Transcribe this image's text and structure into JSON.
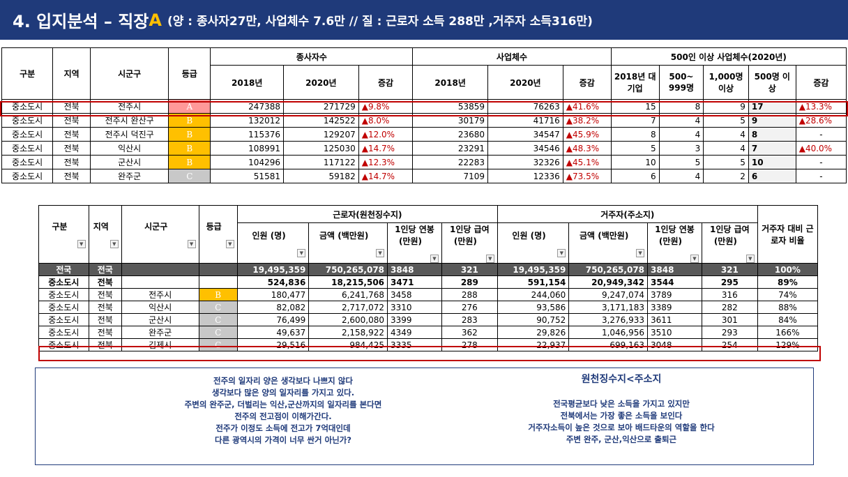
{
  "title": {
    "main": "4. 입지분석 – 직장",
    "accent": "A",
    "sub": "(양 : 종사자27만, 사업체수 7.6만 // 질 : 근로자 소득 288만 ,거주자 소득316만)"
  },
  "table1": {
    "headers": {
      "gubun": "구분",
      "region": "지역",
      "sigungu": "시군구",
      "grade": "등급",
      "workers": "종사자수",
      "biz": "사업체수",
      "big": "500인 이상 사업체수(2020년)",
      "y2018": "2018년",
      "y2020": "2020년",
      "change": "증감",
      "big2018": "2018년 대기업",
      "b500": "500~ 999명",
      "b1000": "1,000명 이상",
      "b500up": "500명 이상",
      "bchange": "증감"
    },
    "rows": [
      {
        "gubun": "중소도시",
        "region": "전북",
        "sigungu": "전주시",
        "grade": "A",
        "w18": "247388",
        "w20": "271729",
        "wc": "▲9.8%",
        "b18": "53859",
        "b20": "76263",
        "bc": "▲41.6%",
        "g18": "15",
        "g500": "8",
        "g1000": "9",
        "gtot": "17",
        "gc": "▲13.3%"
      },
      {
        "gubun": "중소도시",
        "region": "전북",
        "sigungu": "전주시 완산구",
        "grade": "B",
        "w18": "132012",
        "w20": "142522",
        "wc": "▲8.0%",
        "b18": "30179",
        "b20": "41716",
        "bc": "▲38.2%",
        "g18": "7",
        "g500": "4",
        "g1000": "5",
        "gtot": "9",
        "gc": "▲28.6%"
      },
      {
        "gubun": "중소도시",
        "region": "전북",
        "sigungu": "전주시 덕진구",
        "grade": "B",
        "w18": "115376",
        "w20": "129207",
        "wc": "▲12.0%",
        "b18": "23680",
        "b20": "34547",
        "bc": "▲45.9%",
        "g18": "8",
        "g500": "4",
        "g1000": "4",
        "gtot": "8",
        "gc": "-"
      },
      {
        "gubun": "중소도시",
        "region": "전북",
        "sigungu": "익산시",
        "grade": "B",
        "w18": "108991",
        "w20": "125030",
        "wc": "▲14.7%",
        "b18": "23291",
        "b20": "34546",
        "bc": "▲48.3%",
        "g18": "5",
        "g500": "3",
        "g1000": "4",
        "gtot": "7",
        "gc": "▲40.0%"
      },
      {
        "gubun": "중소도시",
        "region": "전북",
        "sigungu": "군산시",
        "grade": "B",
        "w18": "104296",
        "w20": "117122",
        "wc": "▲12.3%",
        "b18": "22283",
        "b20": "32326",
        "bc": "▲45.1%",
        "g18": "10",
        "g500": "5",
        "g1000": "5",
        "gtot": "10",
        "gc": "-"
      },
      {
        "gubun": "중소도시",
        "region": "전북",
        "sigungu": "완주군",
        "grade": "C",
        "w18": "51581",
        "w20": "59182",
        "wc": "▲14.7%",
        "b18": "7109",
        "b20": "12336",
        "bc": "▲73.5%",
        "g18": "6",
        "g500": "4",
        "g1000": "2",
        "gtot": "6",
        "gc": "-"
      }
    ]
  },
  "table2": {
    "headers": {
      "gubun": "구분",
      "region": "지역",
      "sigungu": "시군구",
      "grade": "등급",
      "worker": "근로자(원천징수지)",
      "resident": "거주자(주소지)",
      "people": "인원 (명)",
      "amount": "금액 (백만원)",
      "annual": "1인당 연봉 (만원)",
      "monthly": "1인당 급여 (만원)",
      "ratio": "거주자 대비 근로자 비율"
    },
    "national": {
      "gubun": "전국",
      "region": "전국",
      "wp": "19,495,359",
      "wa": "750,265,078",
      "wy": "3848",
      "wm": "321",
      "rp": "19,495,359",
      "ra": "750,265,078",
      "ry": "3848",
      "rm": "321",
      "ratio": "100%"
    },
    "midcity": {
      "gubun": "중소도시",
      "region": "전북",
      "wp": "524,836",
      "wa": "18,215,506",
      "wy": "3471",
      "wm": "289",
      "rp": "591,154",
      "ra": "20,949,342",
      "ry": "3544",
      "rm": "295",
      "ratio": "89%"
    },
    "rows": [
      {
        "gubun": "중소도시",
        "region": "전북",
        "sigungu": "전주시",
        "grade": "B",
        "wp": "180,477",
        "wa": "6,241,768",
        "wy": "3458",
        "wm": "288",
        "rp": "244,060",
        "ra": "9,247,074",
        "ry": "3789",
        "rm": "316",
        "ratio": "74%"
      },
      {
        "gubun": "중소도시",
        "region": "전북",
        "sigungu": "익산시",
        "grade": "C",
        "wp": "82,082",
        "wa": "2,717,072",
        "wy": "3310",
        "wm": "276",
        "rp": "93,586",
        "ra": "3,171,183",
        "ry": "3389",
        "rm": "282",
        "ratio": "88%"
      },
      {
        "gubun": "중소도시",
        "region": "전북",
        "sigungu": "군산시",
        "grade": "C",
        "wp": "76,499",
        "wa": "2,600,080",
        "wy": "3399",
        "wm": "283",
        "rp": "90,752",
        "ra": "3,276,933",
        "ry": "3611",
        "rm": "301",
        "ratio": "84%"
      },
      {
        "gubun": "중소도시",
        "region": "전북",
        "sigungu": "완주군",
        "grade": "C",
        "wp": "49,637",
        "wa": "2,158,922",
        "wy": "4349",
        "wm": "362",
        "rp": "29,826",
        "ra": "1,046,956",
        "ry": "3510",
        "rm": "293",
        "ratio": "166%"
      },
      {
        "gubun": "중소도시",
        "region": "전북",
        "sigungu": "김제시",
        "grade": "C",
        "wp": "29,516",
        "wa": "984,425",
        "wy": "3335",
        "wm": "278",
        "rp": "22,937",
        "ra": "699,163",
        "ry": "3048",
        "rm": "254",
        "ratio": "129%"
      }
    ]
  },
  "notes": {
    "left": [
      "전주의 일자리 양은 생각보다 나쁘지 않다",
      "생각보다 많은 양의 일자리를 가지고 있다.",
      "주변의 완주군, 더벌리는 익산,군산까지의 일자리를 본다면",
      "전주의 전고점이 이해가간다.",
      "전주가 이정도 소득에 전고가 7억대인데",
      "다른 광역시의 가격이 너무 싼거 아닌가?"
    ],
    "right_head": "원천징수지<주소지",
    "right": [
      "전국평균보다 낮은 소득을 가지고 있지만",
      "전북에서는 가장 좋은 소득을 보인다",
      "거주자소득이 높은 것으로 보아 배드타운의 역할을 한다",
      "주변 완주, 군산,익산으로 출퇴근"
    ]
  }
}
